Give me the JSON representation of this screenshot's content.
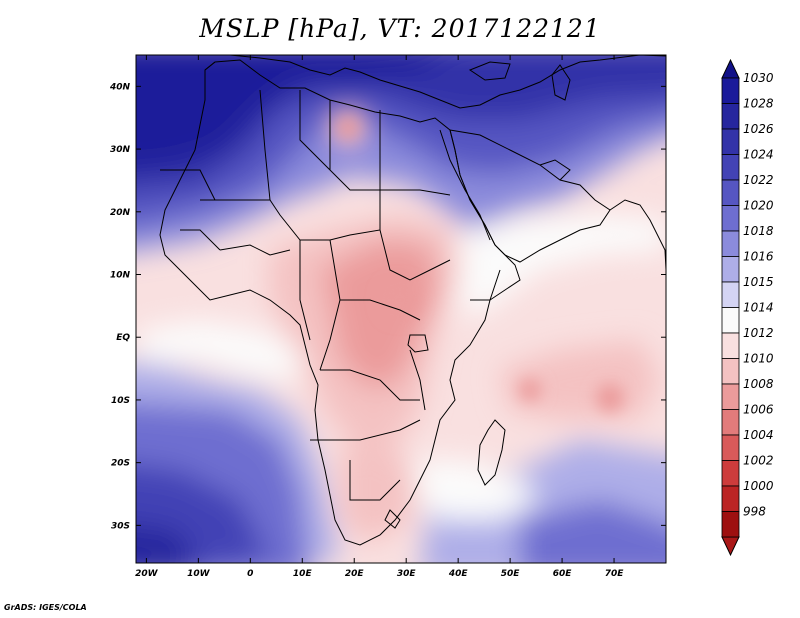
{
  "title": "MSLP [hPa], VT: 2017122121",
  "credit": "GrADS: IGES/COLA",
  "map": {
    "lon_range": [
      -22,
      80
    ],
    "lat_range": [
      -36,
      45
    ],
    "x_ticks": [
      {
        "lon": -20,
        "label": "20W"
      },
      {
        "lon": -10,
        "label": "10W"
      },
      {
        "lon": 0,
        "label": "0"
      },
      {
        "lon": 10,
        "label": "10E"
      },
      {
        "lon": 20,
        "label": "20E"
      },
      {
        "lon": 30,
        "label": "30E"
      },
      {
        "lon": 40,
        "label": "40E"
      },
      {
        "lon": 50,
        "label": "50E"
      },
      {
        "lon": 60,
        "label": "60E"
      },
      {
        "lon": 70,
        "label": "70E"
      }
    ],
    "y_ticks": [
      {
        "lat": 40,
        "label": "40N"
      },
      {
        "lat": 30,
        "label": "30N"
      },
      {
        "lat": 20,
        "label": "20N"
      },
      {
        "lat": 10,
        "label": "10N"
      },
      {
        "lat": 0,
        "label": "EQ"
      },
      {
        "lat": -10,
        "label": "10S"
      },
      {
        "lat": -20,
        "label": "20S"
      },
      {
        "lat": -30,
        "label": "30S"
      }
    ]
  },
  "colorbar": {
    "levels": [
      {
        "label": "1030",
        "color": "#1a1a9a"
      },
      {
        "label": "1028",
        "color": "#26269e"
      },
      {
        "label": "1026",
        "color": "#3333a8"
      },
      {
        "label": "1024",
        "color": "#4343b5"
      },
      {
        "label": "1022",
        "color": "#5656c2"
      },
      {
        "label": "1020",
        "color": "#6e6ed0"
      },
      {
        "label": "1018",
        "color": "#8b8bdc"
      },
      {
        "label": "1016",
        "color": "#aeaee8"
      },
      {
        "label": "1015",
        "color": "#d4d4f3"
      },
      {
        "label": "1014",
        "color": "#fbfbfb"
      },
      {
        "label": "1012",
        "color": "#f9e0e0"
      },
      {
        "label": "1010",
        "color": "#f4c2c2"
      },
      {
        "label": "1008",
        "color": "#eb9b9b"
      },
      {
        "label": "1006",
        "color": "#e27b7b"
      },
      {
        "label": "1004",
        "color": "#d95a5a"
      },
      {
        "label": "1002",
        "color": "#cd3c3c"
      },
      {
        "label": "1000",
        "color": "#bb2424"
      },
      {
        "label": "998",
        "color": "#9e1010"
      }
    ],
    "top_arrow_color": "#111188",
    "bottom_arrow_color": "#aa1818"
  },
  "chart_data": {
    "type": "heatmap",
    "title": "MSLP [hPa], VT: 2017122121",
    "xlabel": "",
    "ylabel": "",
    "xlim": [
      -22,
      80
    ],
    "ylim": [
      -36,
      45
    ],
    "units": "hPa",
    "pressure_features": [
      {
        "lon": -10,
        "lat": 35,
        "value": 1030
      },
      {
        "lon": 10,
        "lat": 41,
        "value": 1028
      },
      {
        "lon": 60,
        "lat": 42,
        "value": 1026
      },
      {
        "lon": 15,
        "lat": 33,
        "value": 1011
      },
      {
        "lon": 25,
        "lat": 15,
        "value": 1009
      },
      {
        "lon": 25,
        "lat": 0,
        "value": 1009
      },
      {
        "lon": 30,
        "lat": -15,
        "value": 1010
      },
      {
        "lon": 55,
        "lat": -10,
        "value": 1010
      },
      {
        "lon": 65,
        "lat": -10,
        "value": 1010
      },
      {
        "lon": 40,
        "lat": 5,
        "value": 1012
      },
      {
        "lon": 0,
        "lat": 0,
        "value": 1013
      },
      {
        "lon": -10,
        "lat": -20,
        "value": 1020
      },
      {
        "lon": -20,
        "lat": -33,
        "value": 1026
      },
      {
        "lon": 25,
        "lat": -27,
        "value": 1011
      },
      {
        "lon": 40,
        "lat": -30,
        "value": 1015
      },
      {
        "lon": 65,
        "lat": -28,
        "value": 1018
      },
      {
        "lon": 45,
        "lat": 25,
        "value": 1018
      }
    ]
  }
}
